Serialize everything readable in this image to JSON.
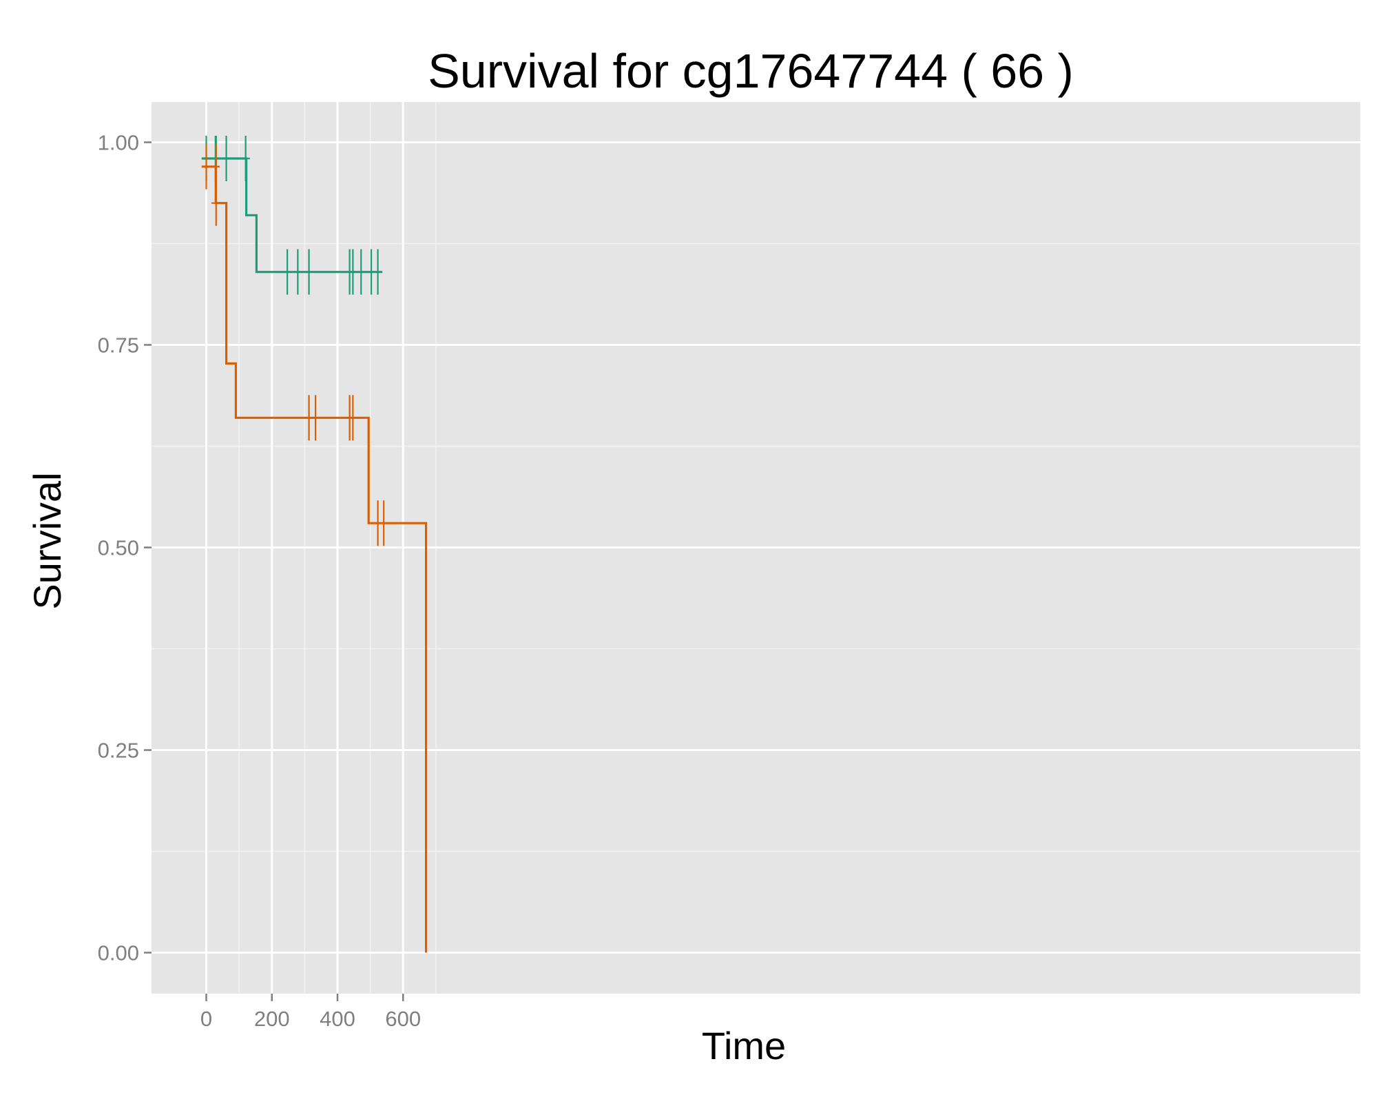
{
  "chart_data": {
    "type": "line",
    "subtype": "kaplan-meier step",
    "title": "Survival for  cg17647744 ( 66 )",
    "xlabel": "Time",
    "ylabel": "Survival",
    "xlim": [
      -33,
      704
    ],
    "ylim": [
      -0.05,
      1.05
    ],
    "x_ticks": [
      0,
      200,
      400,
      600
    ],
    "x_tick_labels": [
      "0",
      "200",
      "400",
      "600"
    ],
    "y_ticks": [
      0,
      0.25,
      0.5,
      0.75,
      1
    ],
    "y_tick_labels": [
      "0.00",
      "0.25",
      "0.50",
      "0.75",
      "1.00"
    ],
    "grid": true,
    "background": "#e5e5e5",
    "legend": "none",
    "series": [
      {
        "color": "#1b9e77",
        "steps": [
          [
            -14,
            0.98
          ],
          [
            122,
            0.98
          ],
          [
            122,
            0.91
          ],
          [
            153,
            0.91
          ],
          [
            153,
            0.84
          ],
          [
            537,
            0.84
          ]
        ],
        "censor_y_start": 0.98,
        "censor_x_start": [
          0,
          28,
          29,
          30,
          61,
          120
        ],
        "censor_y_end": 0.84,
        "censor_x_end": [
          247,
          279,
          313,
          437,
          447,
          472,
          503,
          523
        ],
        "censor_crosses": [
          [
            -14,
            133,
            0.98
          ]
        ]
      },
      {
        "color": "#d95f02",
        "steps": [
          [
            -14,
            0.97
          ],
          [
            29,
            0.97
          ],
          [
            29,
            0.925
          ],
          [
            61,
            0.925
          ],
          [
            61,
            0.727
          ],
          [
            90,
            0.727
          ],
          [
            90,
            0.66
          ],
          [
            495,
            0.66
          ],
          [
            495,
            0.53
          ],
          [
            670,
            0.53
          ],
          [
            670,
            0
          ]
        ],
        "censor_y_start": 0.97,
        "censor_x_start": [
          0,
          30
        ],
        "censor_y_mid": 0.925,
        "censor_x_mid": [
          30
        ],
        "censor_y_late": 0.66,
        "censor_x_late": [
          313,
          333,
          437,
          447
        ],
        "censor_y_end": 0.53,
        "censor_x_end": [
          523,
          541
        ],
        "censor_crosses": [
          [
            -14,
            41,
            0.97
          ],
          [
            16,
            44,
            0.925
          ]
        ]
      }
    ]
  }
}
